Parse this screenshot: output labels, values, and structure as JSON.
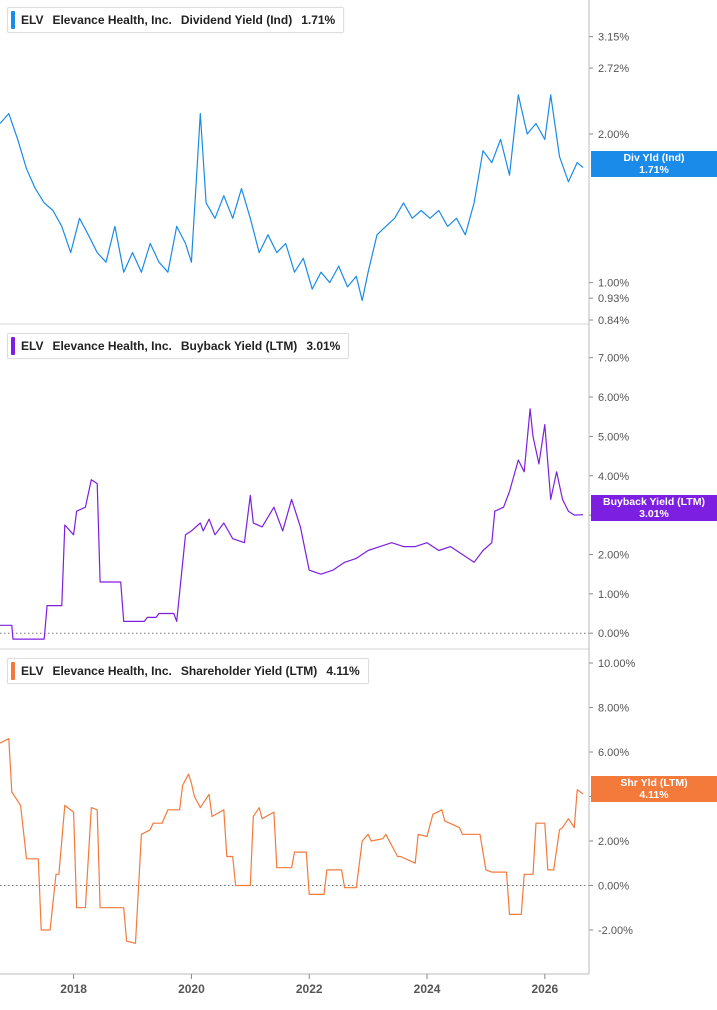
{
  "colors": {
    "dividend": "#1a8be8",
    "buyback": "#7d1fe0",
    "shareholder": "#f47a3c",
    "axis": "#555555",
    "grid": "#cccccc"
  },
  "x_axis": {
    "ticks": [
      "2018",
      "2020",
      "2022",
      "2024",
      "2026"
    ]
  },
  "panels": [
    {
      "id": "dividend",
      "legend": {
        "ticker": "ELV",
        "company": "Elevance Health, Inc.",
        "metric": "Dividend Yield (Ind)",
        "value": "1.71%"
      },
      "tag": {
        "line1": "Div Yld (Ind)",
        "line2": "1.71%"
      }
    },
    {
      "id": "buyback",
      "legend": {
        "ticker": "ELV",
        "company": "Elevance Health, Inc.",
        "metric": "Buyback Yield (LTM)",
        "value": "3.01%"
      },
      "tag": {
        "line1": "Buyback Yield (LTM)",
        "line2": "3.01%"
      }
    },
    {
      "id": "shareholder",
      "legend": {
        "ticker": "ELV",
        "company": "Elevance Health, Inc.",
        "metric": "Shareholder Yield (LTM)",
        "value": "4.11%"
      },
      "tag": {
        "line1": "Shr Yld (LTM)",
        "line2": "4.11%"
      }
    }
  ],
  "chart_data": [
    {
      "type": "line",
      "title": "ELV Elevance Health, Inc. Dividend Yield (Ind) 1.71%",
      "y_scale": "log",
      "ylim": [
        0.84,
        3.5
      ],
      "y_ticks": [
        "3.15%",
        "2.72%",
        "2.00%",
        "1.00%",
        "0.93%",
        "0.84%"
      ],
      "y_tick_values": [
        3.15,
        2.72,
        2.0,
        1.0,
        0.93,
        0.84
      ],
      "xlim": [
        2016.75,
        2026.75
      ],
      "series": [
        {
          "x": [
            2016.75,
            2016.9,
            2017.05,
            2017.2,
            2017.35,
            2017.5,
            2017.65,
            2017.8,
            2017.95,
            2018.1,
            2018.25,
            2018.4,
            2018.55,
            2018.7,
            2018.85,
            2019.0,
            2019.15,
            2019.3,
            2019.45,
            2019.6,
            2019.75,
            2019.9,
            2020.0,
            2020.15,
            2020.25,
            2020.4,
            2020.55,
            2020.7,
            2020.85,
            2021.0,
            2021.15,
            2021.3,
            2021.45,
            2021.6,
            2021.75,
            2021.9,
            2022.05,
            2022.2,
            2022.35,
            2022.5,
            2022.65,
            2022.8,
            2022.9,
            2023.0,
            2023.15,
            2023.3,
            2023.45,
            2023.6,
            2023.75,
            2023.9,
            2024.05,
            2024.2,
            2024.35,
            2024.5,
            2024.65,
            2024.8,
            2024.95,
            2025.1,
            2025.25,
            2025.4,
            2025.55,
            2025.7,
            2025.85,
            2026.0,
            2026.1,
            2026.25,
            2026.4,
            2026.55,
            2026.65
          ],
          "values": [
            2.1,
            2.2,
            1.95,
            1.7,
            1.55,
            1.45,
            1.4,
            1.3,
            1.15,
            1.35,
            1.25,
            1.15,
            1.1,
            1.3,
            1.05,
            1.15,
            1.05,
            1.2,
            1.1,
            1.05,
            1.3,
            1.2,
            1.1,
            2.2,
            1.45,
            1.35,
            1.5,
            1.35,
            1.55,
            1.35,
            1.15,
            1.25,
            1.15,
            1.2,
            1.05,
            1.12,
            0.97,
            1.05,
            1.0,
            1.08,
            0.98,
            1.03,
            0.92,
            1.05,
            1.25,
            1.3,
            1.35,
            1.45,
            1.35,
            1.4,
            1.35,
            1.4,
            1.3,
            1.35,
            1.25,
            1.45,
            1.85,
            1.75,
            1.95,
            1.65,
            2.4,
            2.0,
            2.1,
            1.95,
            2.4,
            1.8,
            1.6,
            1.75,
            1.71
          ]
        }
      ]
    },
    {
      "type": "line",
      "title": "ELV Elevance Health, Inc. Buyback Yield (LTM) 3.01%",
      "ylim": [
        -0.3,
        7.5
      ],
      "y_ticks": [
        "7.00%",
        "6.00%",
        "5.00%",
        "4.00%",
        "3.00%",
        "2.00%",
        "1.00%",
        "0.00%"
      ],
      "y_tick_values": [
        7,
        6,
        5,
        4,
        3,
        2,
        1,
        0
      ],
      "xlim": [
        2016.75,
        2026.75
      ],
      "series": [
        {
          "x": [
            2016.75,
            2016.95,
            2016.97,
            2017.5,
            2017.55,
            2017.8,
            2017.85,
            2018.0,
            2018.05,
            2018.2,
            2018.3,
            2018.4,
            2018.45,
            2018.8,
            2018.85,
            2019.2,
            2019.25,
            2019.4,
            2019.45,
            2019.7,
            2019.75,
            2019.9,
            2020.0,
            2020.15,
            2020.2,
            2020.3,
            2020.4,
            2020.55,
            2020.7,
            2020.9,
            2021.0,
            2021.05,
            2021.2,
            2021.4,
            2021.55,
            2021.7,
            2021.85,
            2022.0,
            2022.2,
            2022.4,
            2022.6,
            2022.8,
            2023.0,
            2023.2,
            2023.4,
            2023.6,
            2023.8,
            2024.0,
            2024.2,
            2024.4,
            2024.6,
            2024.8,
            2024.95,
            2025.1,
            2025.15,
            2025.3,
            2025.4,
            2025.55,
            2025.65,
            2025.75,
            2025.8,
            2025.9,
            2026.0,
            2026.1,
            2026.2,
            2026.3,
            2026.4,
            2026.5,
            2026.65
          ],
          "values": [
            0.2,
            0.2,
            -0.15,
            -0.15,
            0.7,
            0.7,
            2.75,
            2.5,
            3.1,
            3.2,
            3.9,
            3.8,
            1.3,
            1.3,
            0.3,
            0.3,
            0.4,
            0.4,
            0.5,
            0.5,
            0.3,
            2.5,
            2.6,
            2.8,
            2.6,
            2.9,
            2.5,
            2.8,
            2.4,
            2.3,
            3.5,
            2.8,
            2.7,
            3.2,
            2.6,
            3.4,
            2.7,
            1.6,
            1.5,
            1.6,
            1.8,
            1.9,
            2.1,
            2.2,
            2.3,
            2.2,
            2.2,
            2.3,
            2.1,
            2.2,
            2.0,
            1.8,
            2.1,
            2.3,
            3.1,
            3.2,
            3.6,
            4.4,
            4.1,
            5.7,
            5.0,
            4.3,
            5.3,
            3.4,
            4.1,
            3.4,
            3.1,
            3.0,
            3.01
          ]
        }
      ]
    },
    {
      "type": "line",
      "title": "ELV Elevance Health, Inc. Shareholder Yield (LTM) 4.11%",
      "ylim": [
        -3.8,
        10.0
      ],
      "y_ticks": [
        "10.00%",
        "8.00%",
        "6.00%",
        "4.00%",
        "2.00%",
        "0.00%",
        "-2.00%"
      ],
      "y_tick_values": [
        10,
        8,
        6,
        4,
        2,
        0,
        -2
      ],
      "xlim": [
        2016.75,
        2026.75
      ],
      "series": [
        {
          "x": [
            2016.75,
            2016.9,
            2016.95,
            2017.1,
            2017.2,
            2017.4,
            2017.45,
            2017.6,
            2017.7,
            2017.75,
            2017.85,
            2018.0,
            2018.05,
            2018.2,
            2018.3,
            2018.4,
            2018.45,
            2018.85,
            2018.9,
            2019.05,
            2019.15,
            2019.3,
            2019.35,
            2019.5,
            2019.6,
            2019.8,
            2019.85,
            2019.95,
            2020.0,
            2020.05,
            2020.15,
            2020.3,
            2020.35,
            2020.55,
            2020.6,
            2020.7,
            2020.75,
            2021.0,
            2021.05,
            2021.15,
            2021.2,
            2021.4,
            2021.45,
            2021.7,
            2021.75,
            2021.95,
            2022.0,
            2022.25,
            2022.3,
            2022.55,
            2022.6,
            2022.8,
            2022.9,
            2023.0,
            2023.05,
            2023.25,
            2023.3,
            2023.5,
            2023.55,
            2023.8,
            2023.85,
            2024.0,
            2024.1,
            2024.25,
            2024.3,
            2024.55,
            2024.6,
            2024.9,
            2025.0,
            2025.1,
            2025.15,
            2025.35,
            2025.4,
            2025.6,
            2025.65,
            2025.8,
            2025.85,
            2026.0,
            2026.05,
            2026.15,
            2026.25,
            2026.3,
            2026.4,
            2026.5,
            2026.55,
            2026.65
          ],
          "values": [
            6.4,
            6.6,
            4.2,
            3.6,
            1.2,
            1.2,
            -2.0,
            -2.0,
            0.5,
            0.5,
            3.6,
            3.3,
            -1.0,
            -1.0,
            3.5,
            3.4,
            -1.0,
            -1.0,
            -2.5,
            -2.6,
            2.3,
            2.5,
            2.8,
            2.8,
            3.4,
            3.4,
            4.5,
            5.0,
            4.6,
            4.0,
            3.5,
            4.1,
            3.1,
            3.4,
            1.3,
            1.3,
            0.0,
            0.0,
            3.1,
            3.5,
            3.0,
            3.3,
            0.8,
            0.8,
            1.5,
            1.5,
            -0.4,
            -0.4,
            0.7,
            0.7,
            -0.1,
            -0.1,
            2.0,
            2.3,
            2.0,
            2.1,
            2.3,
            1.3,
            1.3,
            1.0,
            2.3,
            2.2,
            3.2,
            3.4,
            2.9,
            2.6,
            2.3,
            2.3,
            0.7,
            0.6,
            0.6,
            0.6,
            -1.3,
            -1.3,
            0.5,
            0.5,
            2.8,
            2.8,
            0.7,
            0.7,
            2.5,
            2.6,
            3.0,
            2.6,
            4.3,
            4.11
          ]
        }
      ]
    }
  ]
}
